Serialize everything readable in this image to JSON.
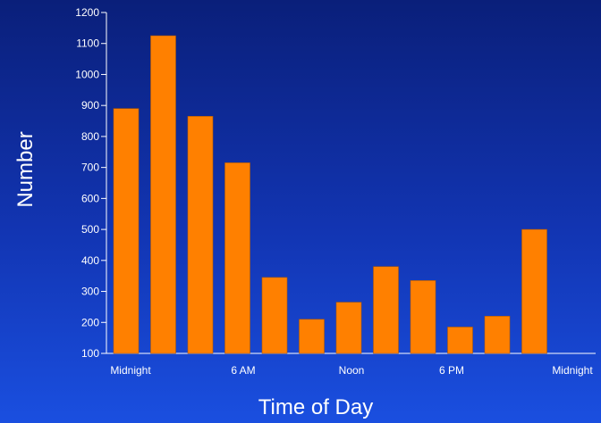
{
  "chart_data": {
    "type": "bar",
    "title": "",
    "xlabel": "Time of Day",
    "ylabel": "Number",
    "ylim": [
      100,
      1200
    ],
    "yticks": [
      100,
      200,
      300,
      400,
      500,
      600,
      700,
      800,
      900,
      1000,
      1100,
      1200
    ],
    "ytick_labels": [
      "100",
      "200",
      "300",
      "400",
      "500",
      "600",
      "700",
      "800",
      "900",
      "1000",
      "1100",
      "1200"
    ],
    "xtick_labels": [
      "Midnight",
      "6 AM",
      "Noon",
      "6 PM",
      "Midnight"
    ],
    "values": [
      890,
      1125,
      865,
      715,
      345,
      210,
      265,
      380,
      335,
      185,
      220,
      500
    ],
    "bar_color": "#ff8000",
    "background_top": "#0a1f7a",
    "background_bottom": "#1a4fe0",
    "text_color": "#ffffff",
    "grid": false
  }
}
